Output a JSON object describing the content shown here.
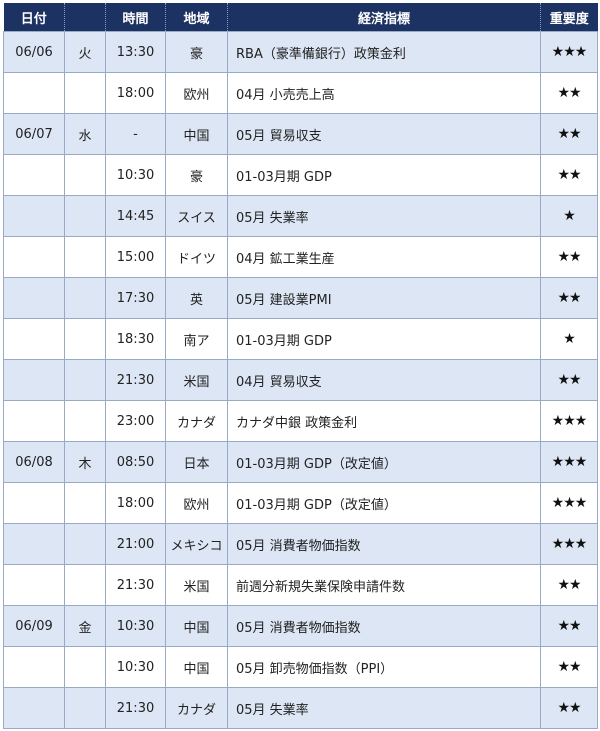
{
  "headers": {
    "date": "日付",
    "weekday": "",
    "time": "時間",
    "region": "地域",
    "indicator": "経済指標",
    "importance": "重要度"
  },
  "rows": [
    {
      "date": "06/06",
      "weekday": "火",
      "time": "13:30",
      "region": "豪",
      "indicator": "RBA（豪準備銀行）政策金利",
      "importance": "★★★"
    },
    {
      "date": "",
      "weekday": "",
      "time": "18:00",
      "region": "欧州",
      "indicator": "04月 小売売上高",
      "importance": "★★"
    },
    {
      "date": "06/07",
      "weekday": "水",
      "time": "-",
      "region": "中国",
      "indicator": "05月 貿易収支",
      "importance": "★★"
    },
    {
      "date": "",
      "weekday": "",
      "time": "10:30",
      "region": "豪",
      "indicator": "01-03月期 GDP",
      "importance": "★★"
    },
    {
      "date": "",
      "weekday": "",
      "time": "14:45",
      "region": "スイス",
      "indicator": "05月 失業率",
      "importance": "★"
    },
    {
      "date": "",
      "weekday": "",
      "time": "15:00",
      "region": "ドイツ",
      "indicator": "04月 鉱工業生産",
      "importance": "★★"
    },
    {
      "date": "",
      "weekday": "",
      "time": "17:30",
      "region": "英",
      "indicator": "05月 建設業PMI",
      "importance": "★★"
    },
    {
      "date": "",
      "weekday": "",
      "time": "18:30",
      "region": "南ア",
      "indicator": "01-03月期 GDP",
      "importance": "★"
    },
    {
      "date": "",
      "weekday": "",
      "time": "21:30",
      "region": "米国",
      "indicator": "04月 貿易収支",
      "importance": "★★"
    },
    {
      "date": "",
      "weekday": "",
      "time": "23:00",
      "region": "カナダ",
      "indicator": "カナダ中銀 政策金利",
      "importance": "★★★"
    },
    {
      "date": "06/08",
      "weekday": "木",
      "time": "08:50",
      "region": "日本",
      "indicator": "01-03月期 GDP（改定値）",
      "importance": "★★★"
    },
    {
      "date": "",
      "weekday": "",
      "time": "18:00",
      "region": "欧州",
      "indicator": "01-03月期 GDP（改定値）",
      "importance": "★★★"
    },
    {
      "date": "",
      "weekday": "",
      "time": "21:00",
      "region": "メキシコ",
      "indicator": "05月 消費者物価指数",
      "importance": "★★★"
    },
    {
      "date": "",
      "weekday": "",
      "time": "21:30",
      "region": "米国",
      "indicator": "前週分新規失業保険申請件数",
      "importance": "★★"
    },
    {
      "date": "06/09",
      "weekday": "金",
      "time": "10:30",
      "region": "中国",
      "indicator": "05月 消費者物価指数",
      "importance": "★★"
    },
    {
      "date": "",
      "weekday": "",
      "time": "10:30",
      "region": "中国",
      "indicator": "05月 卸売物価指数（PPI）",
      "importance": "★★"
    },
    {
      "date": "",
      "weekday": "",
      "time": "21:30",
      "region": "カナダ",
      "indicator": "05月 失業率",
      "importance": "★★"
    }
  ]
}
